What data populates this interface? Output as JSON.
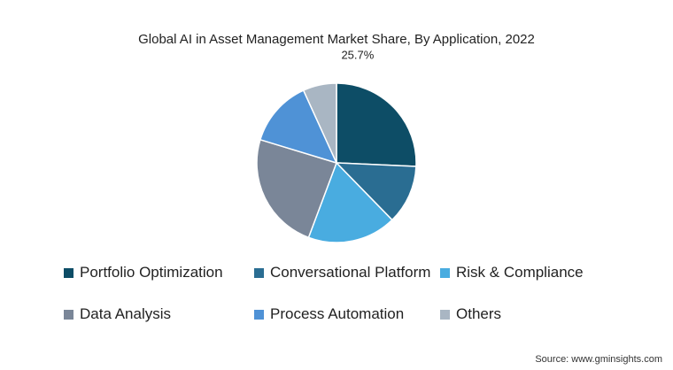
{
  "chart_data": {
    "type": "pie",
    "title": "Global AI in Asset Management Market Share, By Application, 2022",
    "source": "Source: www.gminsights.com",
    "legend_position": "bottom",
    "series": [
      {
        "name": "Portfolio Optimization",
        "value": 25.7,
        "color": "#0d4d66",
        "label": "25.7%"
      },
      {
        "name": "Conversational Platform",
        "value": 12.0,
        "color": "#2a6d92",
        "label": ""
      },
      {
        "name": "Risk & Compliance",
        "value": 18.0,
        "color": "#49ace0",
        "label": ""
      },
      {
        "name": "Data Analysis",
        "value": 24.0,
        "color": "#7a8698",
        "label": ""
      },
      {
        "name": "Process Automation",
        "value": 13.5,
        "color": "#4f92d6",
        "label": ""
      },
      {
        "name": "Others",
        "value": 6.8,
        "color": "#a9b6c3",
        "label": ""
      }
    ]
  }
}
